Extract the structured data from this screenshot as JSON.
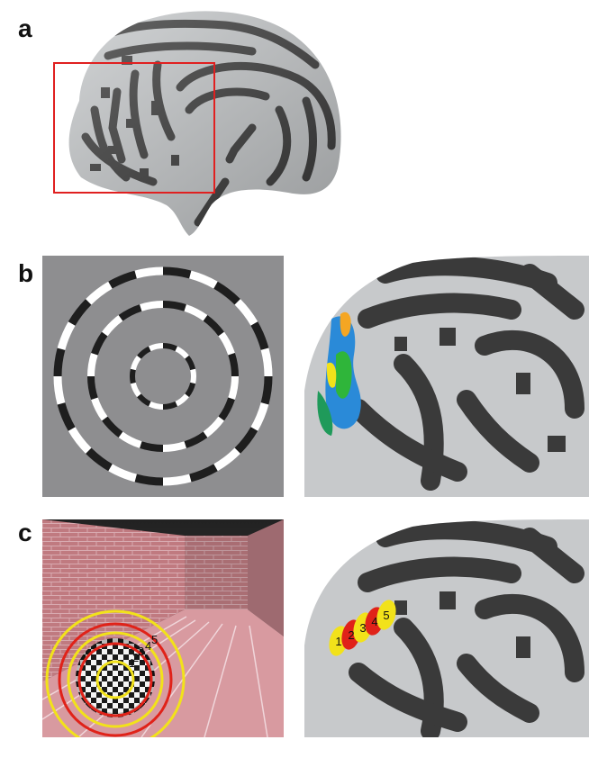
{
  "figure": {
    "panels": [
      {
        "label": "a"
      },
      {
        "label": "b"
      },
      {
        "label": "c"
      }
    ],
    "roi_numbers": [
      "1",
      "2",
      "3",
      "4",
      "5"
    ],
    "ring_numbers": [
      "1",
      "2",
      "3",
      "4",
      "5"
    ]
  },
  "colors": {
    "sulci": "#373737",
    "gyri": "#c6c9cb",
    "stimulus_gray": "#8e8e90",
    "highlight_box": "#e02020",
    "roi_yellow": "#f2e21a",
    "roi_red": "#e02219",
    "brick": "#c07a80",
    "activation_blue": "#2a8ad8",
    "activation_green": "#2fb53a",
    "activation_orange": "#f5a623"
  }
}
